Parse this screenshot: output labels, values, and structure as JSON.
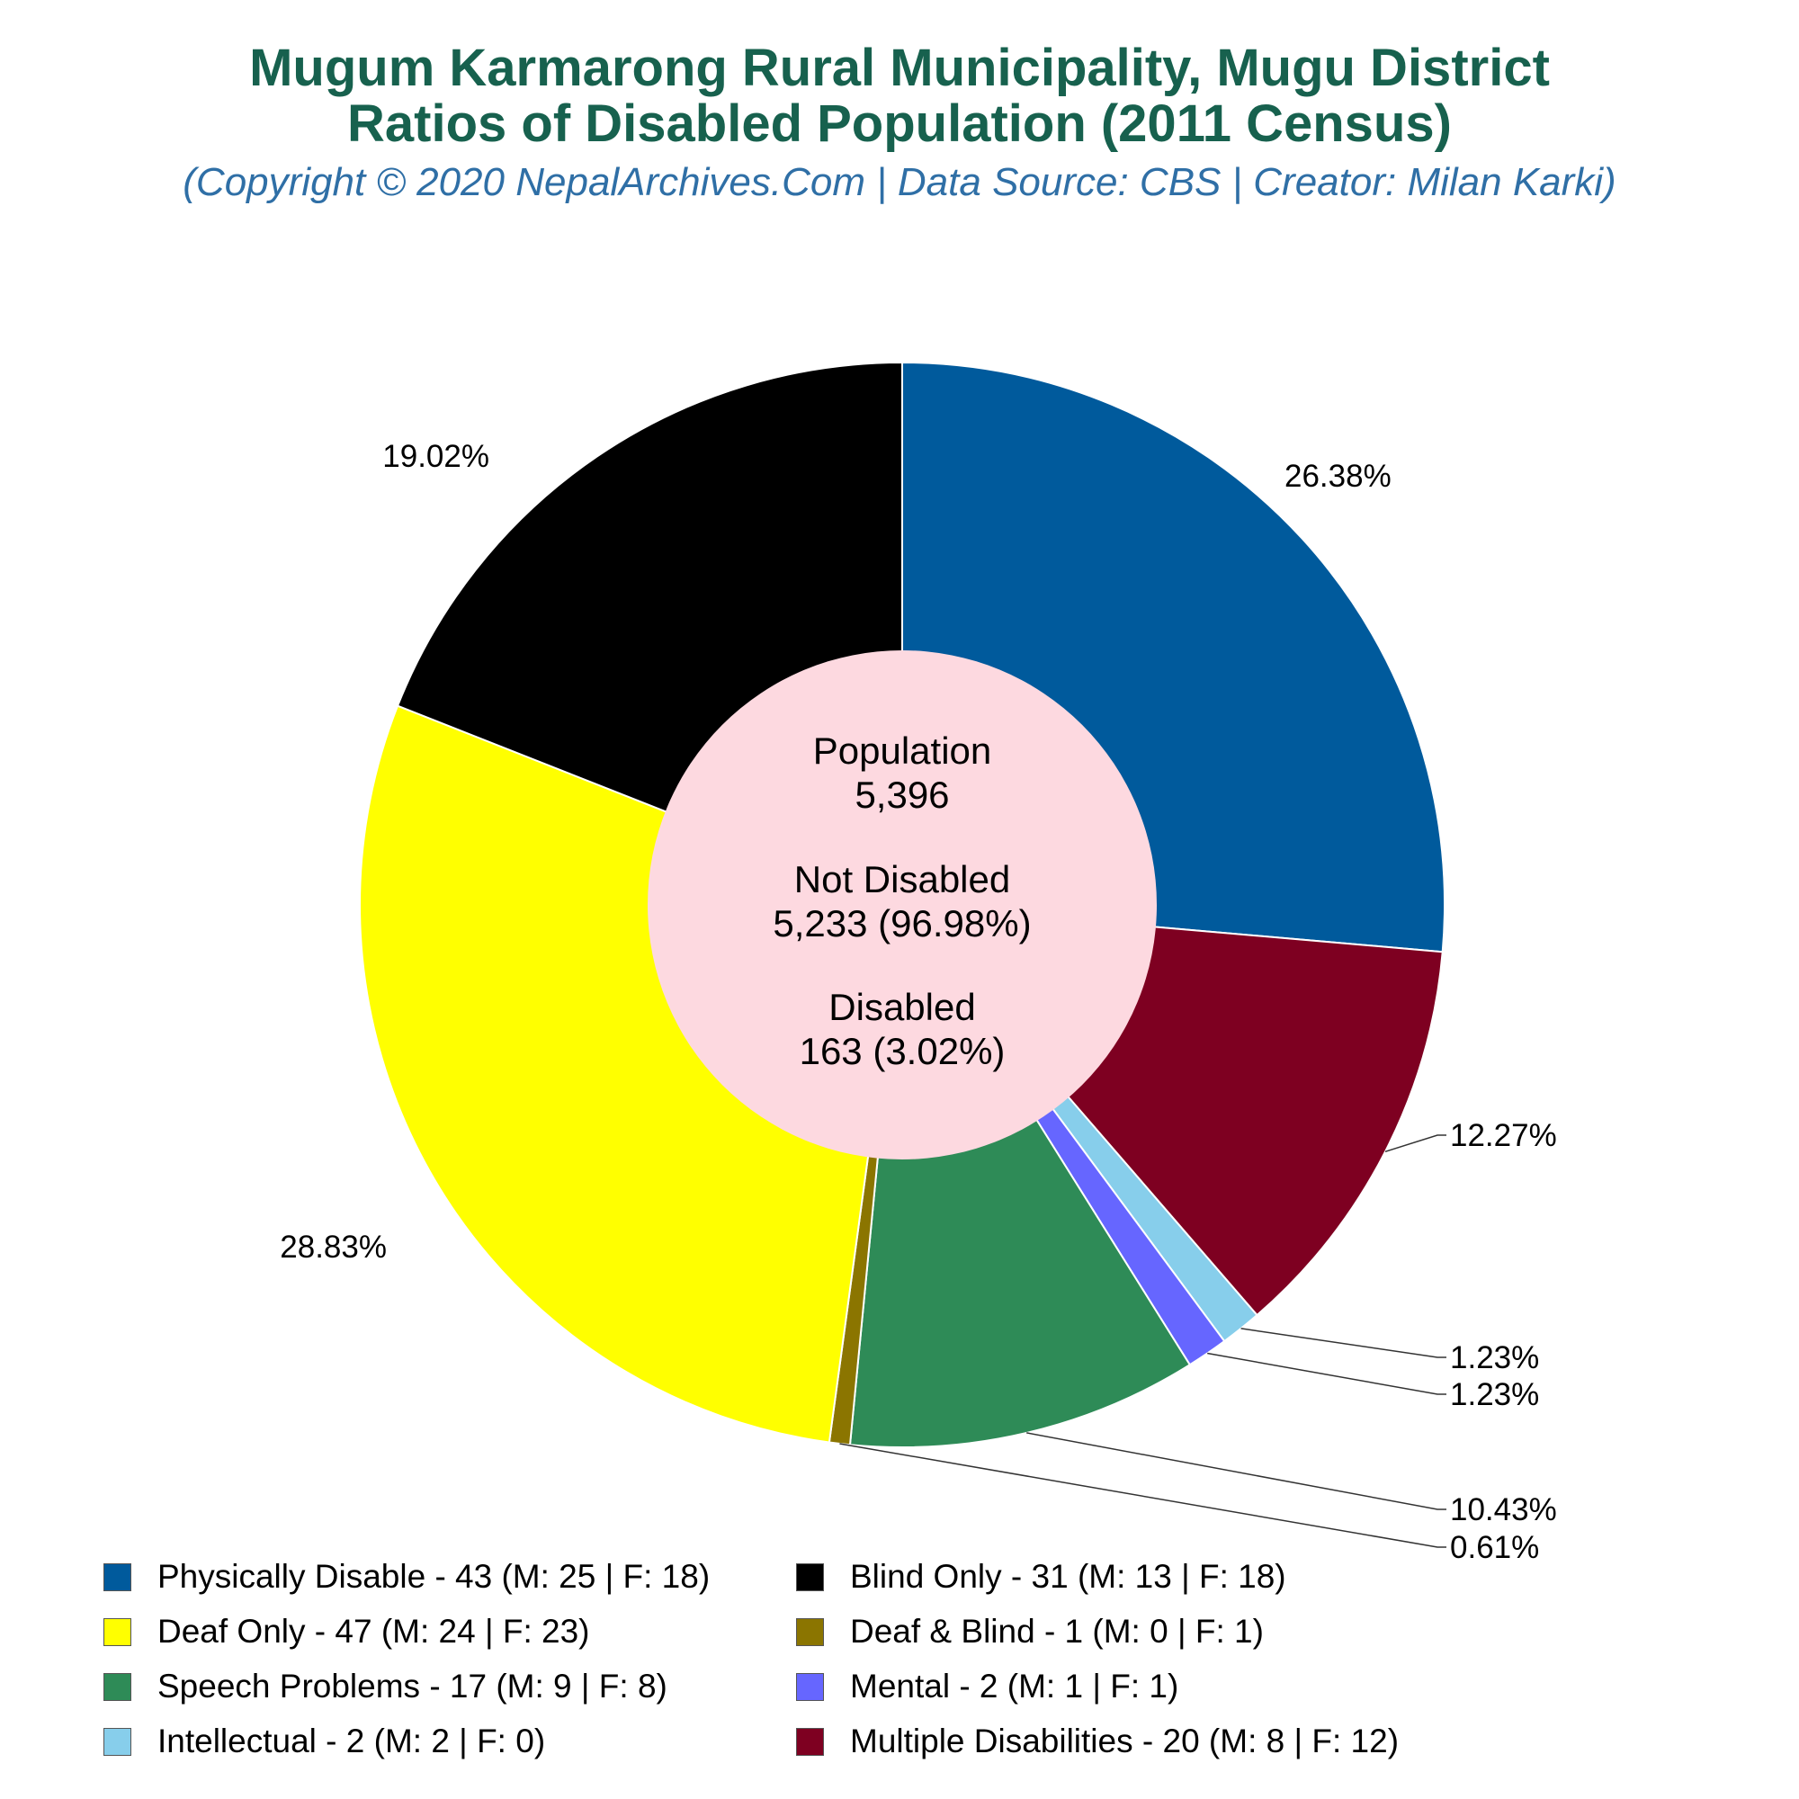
{
  "header": {
    "title_line1": "Mugum Karmarong Rural Municipality, Mugu District",
    "title_line2": "Ratios of Disabled Population (2011 Census)",
    "subtitle": "(Copyright © 2020 NepalArchives.Com | Data Source: CBS | Creator: Milan Karki)"
  },
  "center": {
    "population_label": "Population",
    "population_value": "5,396",
    "not_disabled_label": "Not Disabled",
    "not_disabled_value": "5,233 (96.98%)",
    "disabled_label": "Disabled",
    "disabled_value": "163 (3.02%)"
  },
  "colors": {
    "title": "#17614e",
    "subtitle": "#2f6fa6",
    "center_fill": "#fdd9e0"
  },
  "chart_data": {
    "type": "pie",
    "start_angle_deg": 90,
    "direction": "clockwise",
    "slices": [
      {
        "name": "Physically Disable",
        "value": 43,
        "male": 25,
        "female": 18,
        "percent_label": "26.38%",
        "color": "#005a9c",
        "legend": "Physically Disable - 43 (M: 25 | F: 18)"
      },
      {
        "name": "Multiple Disabilities",
        "value": 20,
        "male": 8,
        "female": 12,
        "percent_label": "12.27%",
        "color": "#7e0021",
        "legend": "Multiple Disabilities - 20 (M: 8 | F: 12)"
      },
      {
        "name": "Intellectual",
        "value": 2,
        "male": 2,
        "female": 0,
        "percent_label": "1.23%",
        "color": "#87ceeb",
        "legend": "Intellectual - 2 (M: 2 | F: 0)"
      },
      {
        "name": "Mental",
        "value": 2,
        "male": 1,
        "female": 1,
        "percent_label": "1.23%",
        "color": "#6666ff",
        "legend": "Mental - 2 (M: 1 | F: 1)"
      },
      {
        "name": "Speech Problems",
        "value": 17,
        "male": 9,
        "female": 8,
        "percent_label": "10.43%",
        "color": "#2e8b57",
        "legend": "Speech Problems - 17 (M: 9 | F: 8)"
      },
      {
        "name": "Deaf & Blind",
        "value": 1,
        "male": 0,
        "female": 1,
        "percent_label": "0.61%",
        "color": "#8b7500",
        "legend": "Deaf & Blind - 1 (M: 0 | F: 1)"
      },
      {
        "name": "Deaf Only",
        "value": 47,
        "male": 24,
        "female": 23,
        "percent_label": "28.83%",
        "color": "#ffff00",
        "legend": "Deaf Only - 47 (M: 24 | F: 23)"
      },
      {
        "name": "Blind Only",
        "value": 31,
        "male": 13,
        "female": 18,
        "percent_label": "19.02%",
        "color": "#000000",
        "legend": "Blind Only - 31 (M: 13 | F: 18)"
      }
    ],
    "legend_order": [
      "Physically Disable",
      "Blind Only",
      "Deaf Only",
      "Deaf & Blind",
      "Speech Problems",
      "Mental",
      "Intellectual",
      "Multiple Disabilities"
    ],
    "legend_placement": "bottom"
  }
}
